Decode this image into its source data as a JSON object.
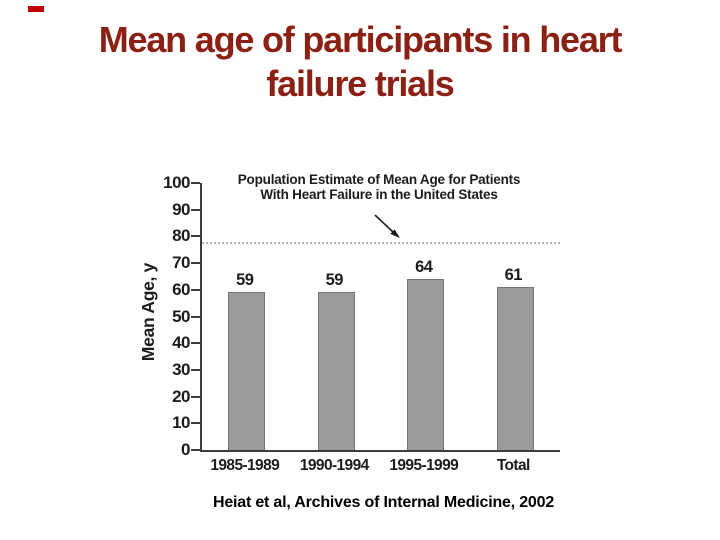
{
  "slide": {
    "accent_color": "#c00000",
    "title": {
      "line1": "Mean age of participants in heart",
      "line2": "failure trials",
      "color": "#8b2015"
    },
    "citation": "Heiat et al, Archives of Internal Medicine, 2002"
  },
  "chart_data": {
    "type": "bar",
    "categories": [
      "1985-1989",
      "1990-1994",
      "1995-1999",
      "Total"
    ],
    "values": [
      59,
      59,
      64,
      61
    ],
    "title": "",
    "xlabel": "",
    "ylabel": "Mean Age, y",
    "ylim": [
      0,
      100
    ],
    "ytick_step": 10,
    "grid": "off",
    "legend": "none",
    "bar_color": "#9b9b9b",
    "bar_border_color": "#757575",
    "ink_color": "#1c1c1c",
    "annotation": {
      "text_line1": "Population Estimate of Mean Age for Patients",
      "text_line2": "With Heart Failure in the United States",
      "points_to_value": 78,
      "reference_line_style": "dotted"
    }
  }
}
